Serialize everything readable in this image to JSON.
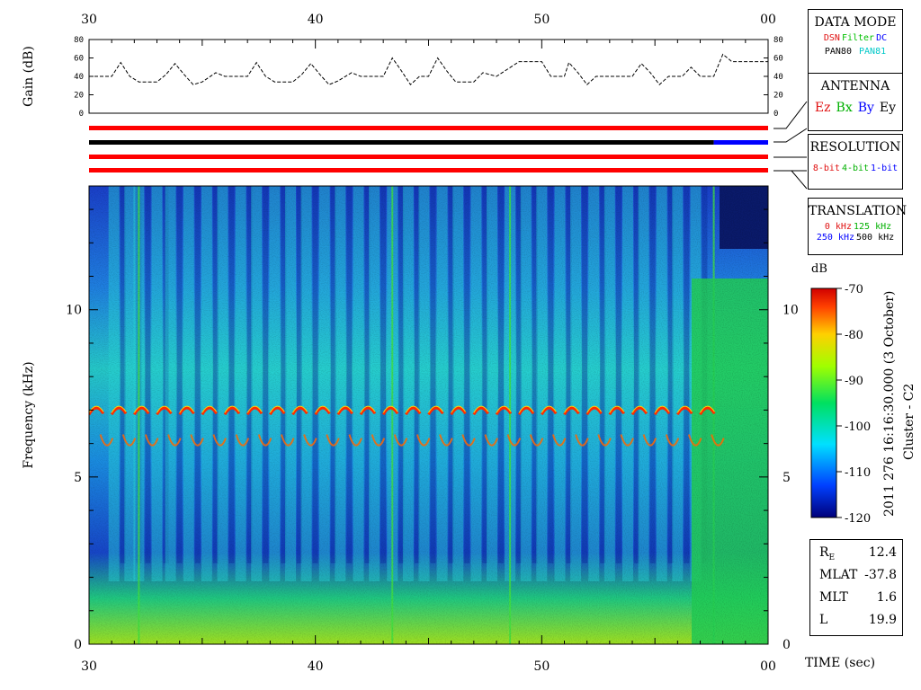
{
  "chart_data": {
    "type": "heatmap",
    "time_axis": {
      "ticks": [
        "30",
        "40",
        "50",
        "00"
      ],
      "range": [
        30,
        60
      ],
      "label": "TIME (sec)"
    },
    "frequency_axis": {
      "label": "Frequency (kHz)",
      "ticks": [
        "0",
        "5",
        "10"
      ],
      "range": [
        0,
        13.7
      ]
    },
    "gain_panel": {
      "ylabel": "Gain (dB)",
      "ticks": [
        "0",
        "20",
        "40",
        "60",
        "80"
      ],
      "range": [
        0,
        80
      ],
      "series": [
        [
          30,
          40
        ],
        [
          31,
          40
        ],
        [
          31.4,
          55
        ],
        [
          31.8,
          40
        ],
        [
          32.2,
          34
        ],
        [
          33,
          34
        ],
        [
          33.4,
          42
        ],
        [
          33.8,
          54
        ],
        [
          34.2,
          42
        ],
        [
          34.6,
          31
        ],
        [
          35,
          34
        ],
        [
          35.6,
          44
        ],
        [
          36,
          40
        ],
        [
          37,
          40
        ],
        [
          37.4,
          55
        ],
        [
          37.8,
          40
        ],
        [
          38.2,
          34
        ],
        [
          39,
          34
        ],
        [
          39.4,
          42
        ],
        [
          39.8,
          54
        ],
        [
          40.2,
          42
        ],
        [
          40.6,
          31
        ],
        [
          41,
          35
        ],
        [
          41.6,
          44
        ],
        [
          42,
          40
        ],
        [
          43,
          40
        ],
        [
          43.4,
          60
        ],
        [
          43.8,
          46
        ],
        [
          44.2,
          31
        ],
        [
          44.6,
          40
        ],
        [
          45,
          40
        ],
        [
          45.4,
          60
        ],
        [
          45.8,
          46
        ],
        [
          46.2,
          34
        ],
        [
          47,
          34
        ],
        [
          47.4,
          44
        ],
        [
          48,
          40
        ],
        [
          49,
          56
        ],
        [
          50,
          56
        ],
        [
          50.4,
          40
        ],
        [
          51,
          40
        ],
        [
          51.2,
          55
        ],
        [
          51.6,
          44
        ],
        [
          52,
          31
        ],
        [
          52.4,
          40
        ],
        [
          54,
          40
        ],
        [
          54.4,
          54
        ],
        [
          54.8,
          44
        ],
        [
          55.2,
          31
        ],
        [
          55.6,
          40
        ],
        [
          56.2,
          40
        ],
        [
          56.6,
          50
        ],
        [
          57,
          40
        ],
        [
          57.6,
          40
        ],
        [
          58,
          64
        ],
        [
          58.4,
          56
        ],
        [
          60,
          56
        ]
      ]
    },
    "colorbar": {
      "label": "dB",
      "ticks": [
        "-70",
        "-80",
        "-90",
        "-100",
        "-110",
        "-120"
      ],
      "range": [
        -120,
        -70
      ]
    },
    "side_text": "2011 276 16:16:30.000 (3 October)",
    "side_text2": "Cluster - C2",
    "emission_band_khz": 7.0,
    "secondary_band_khz": 6.0
  },
  "data_mode": {
    "title": "DATA MODE",
    "row1": [
      "DSN",
      "Filter",
      "DC"
    ],
    "row2": [
      "PAN80",
      "PAN81"
    ],
    "colors": {
      "DSN": "#e01010",
      "Filter": "#00c000",
      "DC": "#0000ff",
      "PAN80": "#000000",
      "PAN81": "#00c8c8"
    }
  },
  "antenna": {
    "title": "ANTENNA",
    "items": [
      "Ez",
      "Bx",
      "By",
      "Ey"
    ],
    "colors": [
      "#e01010",
      "#00b000",
      "#0000ff",
      "#000000"
    ]
  },
  "resolution": {
    "title": "RESOLUTION",
    "items": [
      "8-bit",
      "4-bit",
      "1-bit"
    ],
    "colors": [
      "#e01010",
      "#00b000",
      "#0000ff"
    ]
  },
  "translation": {
    "title": "TRANSLATION",
    "row1": [
      "0 kHz",
      "125 kHz"
    ],
    "row2": [
      "250 kHz",
      "500 kHz"
    ],
    "colors": [
      "#e01010",
      "#00b000",
      "#0000ff",
      "#000000"
    ]
  },
  "status_bars": {
    "mode_color": "#ff0000",
    "antenna_color": "#000000",
    "antenna_switch_color": "#0000ff",
    "antenna_switch_time": 57.6,
    "resolution_color": "#ff0000",
    "translation_color": "#ff0000"
  },
  "orbit": {
    "re_label_main": "R",
    "re_label_sub": "E",
    "re_value": "12.4",
    "mlat_label": "MLAT",
    "mlat_value": "-37.8",
    "mlt_label": "MLT",
    "mlt_value": "1.6",
    "l_label": "L",
    "l_value": "19.9"
  }
}
